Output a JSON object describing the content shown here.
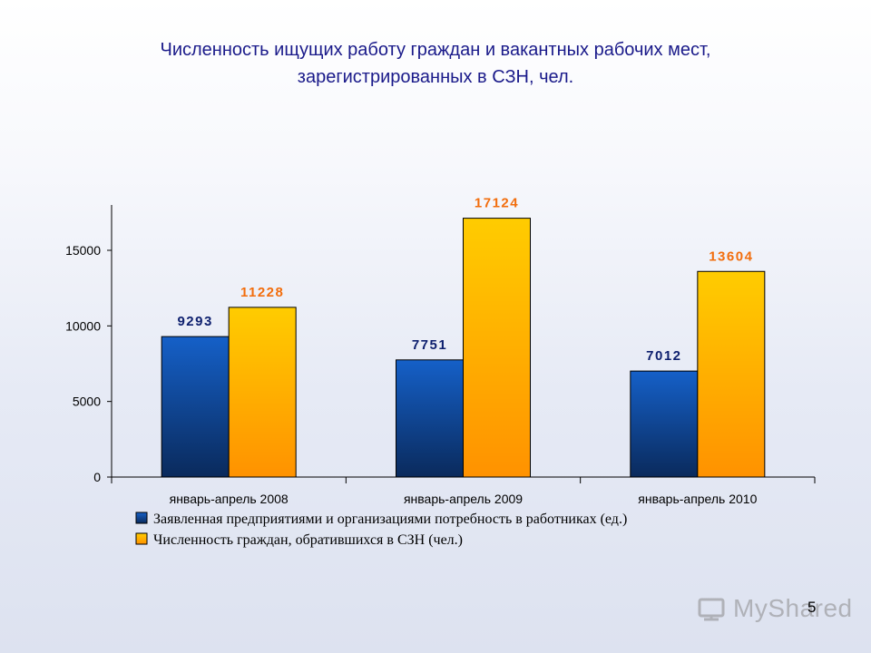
{
  "header": {
    "title_line1": "Численность ищущих работу граждан и вакантных рабочих мест,",
    "title_line2": "зарегистрированных в СЗН, чел."
  },
  "page_number": "5",
  "watermark": {
    "text": "MyShared",
    "icon": "presentation-screen-icon"
  },
  "chart_data": {
    "type": "bar",
    "categories": [
      "январь-апрель 2008",
      "январь-апрель 2009",
      "январь-апрель 2010"
    ],
    "series": [
      {
        "name": "Заявленная предприятиями и организациями потребность в работниках  (ед.)",
        "values": [
          9293,
          7751,
          7012
        ],
        "color": "#1560c8",
        "color_dark": "#0a2a5c",
        "label_color": "#0d1f6e"
      },
      {
        "name": "Численность граждан, обратившихся в СЗН (чел.)",
        "values": [
          11228,
          17124,
          13604
        ],
        "color": "#ffcc00",
        "color_dark": "#ff9200",
        "label_color": "#f26d0c"
      }
    ],
    "yticks": [
      0,
      5000,
      10000,
      15000
    ],
    "ylim": [
      0,
      18000
    ],
    "grid": false,
    "legend_position": "bottom",
    "data_labels": true
  }
}
